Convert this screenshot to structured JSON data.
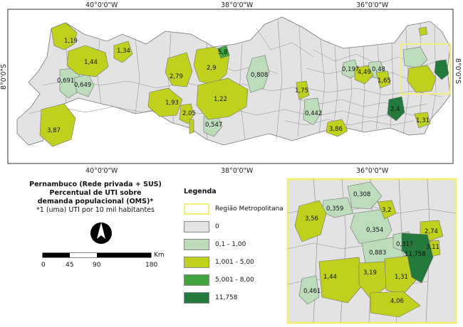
{
  "map": {
    "coords_top": [
      "40°0'0\"W",
      "38°0'0\"W",
      "36°0'0\"W"
    ],
    "coords_bottom": [
      "40°0'0\"W",
      "38°0'0\"W",
      "36°0'0\"W"
    ],
    "coord_left": "8°0'0\"S",
    "coord_right": "8°0'0\"S",
    "municipality_values": [
      "1,19",
      "1,44",
      "1,34",
      "0,691",
      "0,649",
      "2,79",
      "2,9",
      "5,8",
      "0,808",
      "1,93",
      "1,22",
      "2,05",
      "0,547",
      "3,87",
      "1,75",
      "0,442",
      "0,197",
      "4,49",
      "0,48",
      "1,65",
      "2,4",
      "3,86",
      "1,31"
    ]
  },
  "inset": {
    "values": [
      "0,308",
      "0,359",
      "3,56",
      "3,2",
      "0,354",
      "2,74",
      "0,317",
      "3,11",
      "11,758",
      "0,883",
      "1,44",
      "3,19",
      "1,31",
      "4,06",
      "0,461"
    ]
  },
  "title": {
    "line1": "Pernambuco (Rede privada + SUS)",
    "line2": "Percentual de UTI sobre",
    "line3": "demanda populacional (OMS)*",
    "line4": "*1 (uma) UTI por 10 mil habitantes"
  },
  "legend": {
    "title": "Legenda",
    "items": [
      {
        "label": "Região Metropolitana",
        "kind": "outline",
        "color": "#f1ee7a"
      },
      {
        "label": "0",
        "kind": "fill",
        "color": "#e3e3e3"
      },
      {
        "label": "0,1 - 1,00",
        "kind": "fill",
        "color": "#bcdcbc"
      },
      {
        "label": "1,001 - 5,00",
        "kind": "fill",
        "color": "#bfd11c"
      },
      {
        "label": "5,001 - 8,00",
        "kind": "fill",
        "color": "#3fa33f"
      },
      {
        "label": "11,758",
        "kind": "fill",
        "color": "#237a3c"
      }
    ]
  },
  "scale": {
    "unit": "Km",
    "ticks": [
      "0",
      "45",
      "90",
      "180"
    ]
  },
  "compass": "north-arrow-icon"
}
